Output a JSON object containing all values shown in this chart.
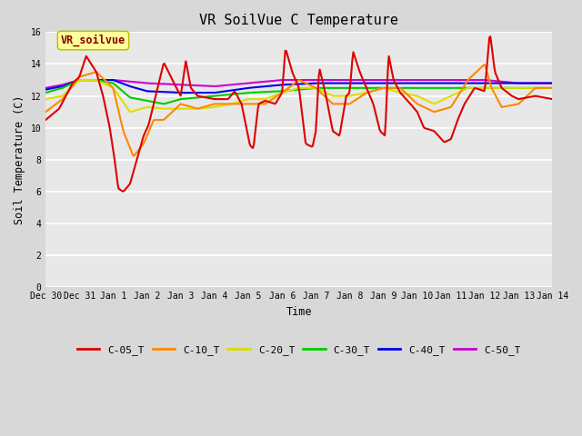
{
  "title": "VR SoilVue C Temperature",
  "ylabel": "Soil Temperature (C)",
  "xlabel": "Time",
  "annotation": "VR_soilvue",
  "ylim": [
    0,
    16
  ],
  "yticks": [
    0,
    2,
    4,
    6,
    8,
    10,
    12,
    14,
    16
  ],
  "series_colors": {
    "C-05_T": "#dd0000",
    "C-10_T": "#ff8800",
    "C-20_T": "#dddd00",
    "C-30_T": "#00cc00",
    "C-40_T": "#0000ee",
    "C-50_T": "#cc00cc"
  },
  "bg_color": "#e8e8e8",
  "grid_color": "#ffffff",
  "annotation_bg": "#ffff99",
  "annotation_border": "#bbbb00",
  "tick_labels": [
    "Dec 30",
    "Dec 31",
    "Jan 1",
    "Jan 2",
    "Jan 3",
    "Jan 4",
    "Jan 5",
    "Jan 6",
    "Jan 7",
    "Jan 8",
    "Jan 9",
    "Jan 10",
    "Jan 11",
    "Jan 12",
    "Jan 13",
    "Jan 14"
  ],
  "n_days": 15
}
